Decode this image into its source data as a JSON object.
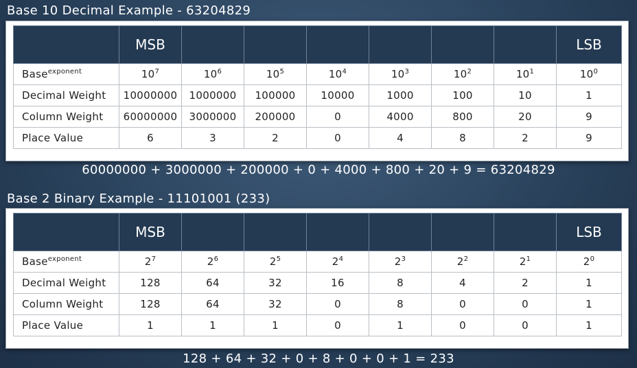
{
  "decimal": {
    "title": "Base 10 Decimal Example - 63204829",
    "headers": [
      "",
      "MSB",
      "",
      "",
      "",
      "",
      "",
      "",
      "LSB"
    ],
    "rows": [
      {
        "label": "Base",
        "label_sup": "exponent",
        "cells": [
          {
            "b": "10",
            "e": "7"
          },
          {
            "b": "10",
            "e": "6"
          },
          {
            "b": "10",
            "e": "5"
          },
          {
            "b": "10",
            "e": "4"
          },
          {
            "b": "10",
            "e": "3"
          },
          {
            "b": "10",
            "e": "2"
          },
          {
            "b": "10",
            "e": "1"
          },
          {
            "b": "10",
            "e": "0"
          }
        ]
      },
      {
        "label": "Decimal Weight",
        "cells": [
          "10000000",
          "1000000",
          "100000",
          "10000",
          "1000",
          "100",
          "10",
          "1"
        ]
      },
      {
        "label": "Column Weight",
        "cells": [
          "60000000",
          "3000000",
          "200000",
          "0",
          "4000",
          "800",
          "20",
          "9"
        ]
      },
      {
        "label": "Place Value",
        "cells": [
          "6",
          "3",
          "2",
          "0",
          "4",
          "8",
          "2",
          "9"
        ]
      }
    ],
    "equation": "60000000 + 3000000 + 200000 + 0 + 4000 + 800 + 20 + 9 = 63204829"
  },
  "binary": {
    "title": "Base 2 Binary Example - 11101001 (233)",
    "headers": [
      "",
      "MSB",
      "",
      "",
      "",
      "",
      "",
      "",
      "LSB"
    ],
    "rows": [
      {
        "label": "Base",
        "label_sup": "exponent",
        "cells": [
          {
            "b": "2",
            "e": "7"
          },
          {
            "b": "2",
            "e": "6"
          },
          {
            "b": "2",
            "e": "5"
          },
          {
            "b": "2",
            "e": "4"
          },
          {
            "b": "2",
            "e": "3"
          },
          {
            "b": "2",
            "e": "2"
          },
          {
            "b": "2",
            "e": "1"
          },
          {
            "b": "2",
            "e": "0"
          }
        ]
      },
      {
        "label": "Decimal Weight",
        "cells": [
          "128",
          "64",
          "32",
          "16",
          "8",
          "4",
          "2",
          "1"
        ]
      },
      {
        "label": "Column Weight",
        "cells": [
          "128",
          "64",
          "32",
          "0",
          "8",
          "0",
          "0",
          "1"
        ]
      },
      {
        "label": "Place Value",
        "cells": [
          "1",
          "1",
          "1",
          "0",
          "1",
          "0",
          "0",
          "1"
        ]
      }
    ],
    "equation": "128 + 64 + 32 + 0 + 8 + 0 + 0 + 1 = 233"
  }
}
